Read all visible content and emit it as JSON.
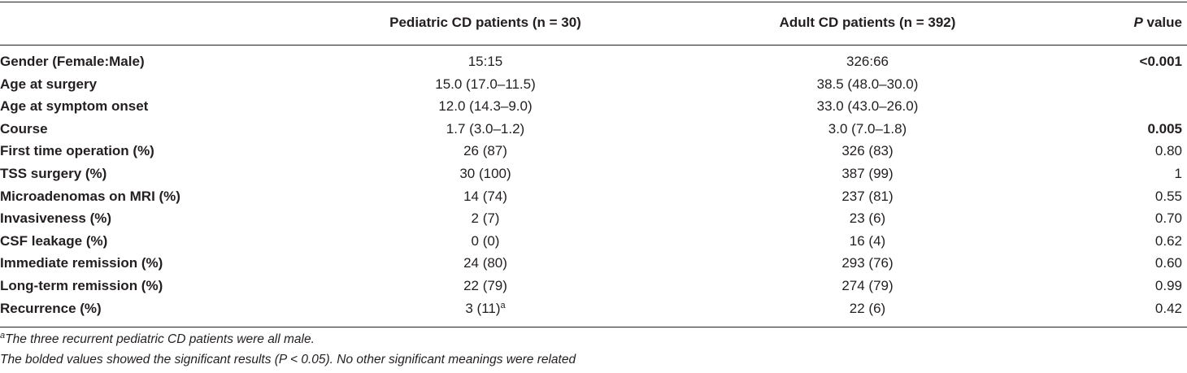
{
  "header": {
    "col0": "",
    "col1": "Pediatric CD patients (n = 30)",
    "col2": "Adult CD patients (n = 392)",
    "col3_italic": "P",
    "col3_rest": " value"
  },
  "rows": [
    {
      "label": "Gender (Female:Male)",
      "ped": "15:15",
      "adult": "326:66",
      "p": "<0.001",
      "p_bold": true
    },
    {
      "label": "Age at surgery",
      "ped": "15.0 (17.0–11.5)",
      "adult": "38.5 (48.0–30.0)",
      "p": "",
      "p_bold": false
    },
    {
      "label": "Age at symptom onset",
      "ped": "12.0 (14.3–9.0)",
      "adult": "33.0 (43.0–26.0)",
      "p": "",
      "p_bold": false
    },
    {
      "label": "Course",
      "ped": "1.7 (3.0–1.2)",
      "adult": "3.0 (7.0–1.8)",
      "p": "0.005",
      "p_bold": true
    },
    {
      "label": "First time operation (%)",
      "ped": "26 (87)",
      "adult": "326 (83)",
      "p": "0.80",
      "p_bold": false
    },
    {
      "label": "TSS surgery (%)",
      "ped": "30 (100)",
      "adult": "387 (99)",
      "p": "1",
      "p_bold": false
    },
    {
      "label": "Microadenomas on MRI (%)",
      "ped": "14 (74)",
      "adult": "237 (81)",
      "p": "0.55",
      "p_bold": false
    },
    {
      "label": "Invasiveness (%)",
      "ped": "2 (7)",
      "adult": "23 (6)",
      "p": "0.70",
      "p_bold": false
    },
    {
      "label": "CSF leakage (%)",
      "ped": "0 (0)",
      "adult": "16 (4)",
      "p": "0.62",
      "p_bold": false
    },
    {
      "label": "Immediate remission (%)",
      "ped": "24 (80)",
      "adult": "293 (76)",
      "p": "0.60",
      "p_bold": false
    },
    {
      "label": "Long-term remission (%)",
      "ped": "22 (79)",
      "adult": "274 (79)",
      "p": "0.99",
      "p_bold": false
    },
    {
      "label": "Recurrence (%)",
      "ped": "3 (11)",
      "ped_sup": "a",
      "adult": "22 (6)",
      "p": "0.42",
      "p_bold": false
    }
  ],
  "footnotes": {
    "a_marker": "a",
    "a_text": "The three recurrent pediatric CD patients were all male.",
    "note": "The bolded values showed the significant results (P < 0.05). No other significant meanings were related"
  }
}
